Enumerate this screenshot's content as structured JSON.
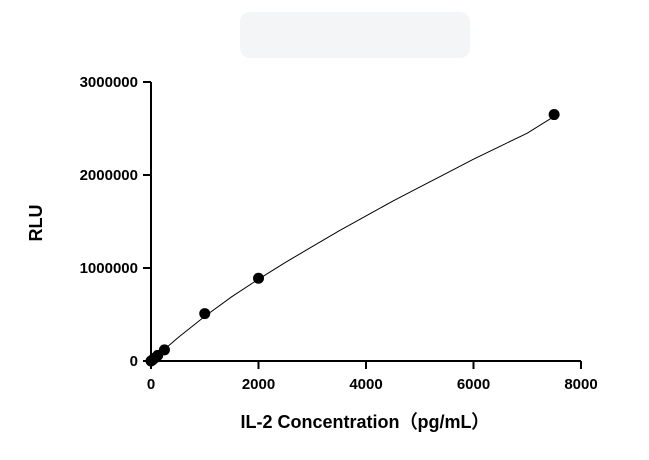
{
  "chart_data": {
    "type": "scatter",
    "title": "",
    "xlabel": "IL-2 Concentration（pg/mL）",
    "ylabel": "RLU",
    "xlim": [
      0,
      8000
    ],
    "ylim": [
      0,
      3000000
    ],
    "x_ticks": [
      0,
      2000,
      4000,
      6000,
      8000
    ],
    "y_ticks": [
      0,
      1000000,
      2000000,
      3000000
    ],
    "x_tick_labels": [
      "0",
      "2000",
      "4000",
      "6000",
      "8000"
    ],
    "y_tick_labels": [
      "0",
      "1000000",
      "2000000",
      "3000000"
    ],
    "grid": false,
    "legend": "none",
    "series": [
      {
        "points": [
          {
            "x": 0,
            "y": 0
          },
          {
            "x": 30,
            "y": 12000
          },
          {
            "x": 62.5,
            "y": 30000
          },
          {
            "x": 125,
            "y": 60000
          },
          {
            "x": 250,
            "y": 120000
          },
          {
            "x": 1000,
            "y": 510000
          },
          {
            "x": 2000,
            "y": 890000
          },
          {
            "x": 7500,
            "y": 2650000
          }
        ],
        "fit": {
          "type": "curve",
          "x": [
            0,
            500,
            1000,
            1500,
            2000,
            2500,
            3000,
            3500,
            4000,
            4500,
            5000,
            5500,
            6000,
            6500,
            7000,
            7500
          ],
          "y": [
            0,
            250000,
            480000,
            690000,
            880000,
            1060000,
            1230000,
            1400000,
            1560000,
            1720000,
            1870000,
            2020000,
            2170000,
            2310000,
            2450000,
            2630000
          ]
        }
      }
    ],
    "colors": {
      "marker": "#000000",
      "line": "#000000",
      "background": "#ffffff"
    }
  }
}
